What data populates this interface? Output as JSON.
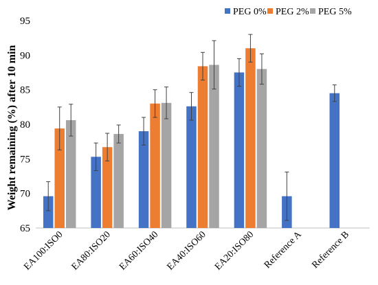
{
  "chart_data": {
    "type": "bar",
    "title": "",
    "xlabel": "",
    "ylabel": "Weight remaining (%) after 10 min",
    "ylim": [
      65,
      95
    ],
    "yticks": [
      65,
      70,
      75,
      80,
      85,
      90,
      95
    ],
    "grid": false,
    "legend_position": "top-right",
    "categories": [
      "EA100:ISO0",
      "EA80:ISO20",
      "EA60:ISO40",
      "EA40:ISO60",
      "EA20:ISO80",
      "Reference A",
      "Reference B"
    ],
    "series": [
      {
        "name": "PEG 0%",
        "color": "#4472C4",
        "values": [
          69.6,
          75.3,
          79.0,
          82.6,
          87.5,
          69.6,
          84.5
        ],
        "errors": [
          2.1,
          2.0,
          2.0,
          2.0,
          2.0,
          3.5,
          1.2
        ]
      },
      {
        "name": "PEG 2%",
        "color": "#ED7D31",
        "values": [
          79.4,
          76.7,
          83.0,
          88.4,
          91.0,
          null,
          null
        ],
        "errors": [
          3.1,
          2.0,
          2.0,
          2.0,
          2.0,
          null,
          null
        ]
      },
      {
        "name": "PEG 5%",
        "color": "#A5A5A5",
        "values": [
          80.6,
          78.6,
          83.1,
          88.6,
          88.0,
          null,
          null
        ],
        "errors": [
          2.3,
          1.3,
          2.3,
          3.5,
          2.2,
          null,
          null
        ]
      }
    ]
  }
}
